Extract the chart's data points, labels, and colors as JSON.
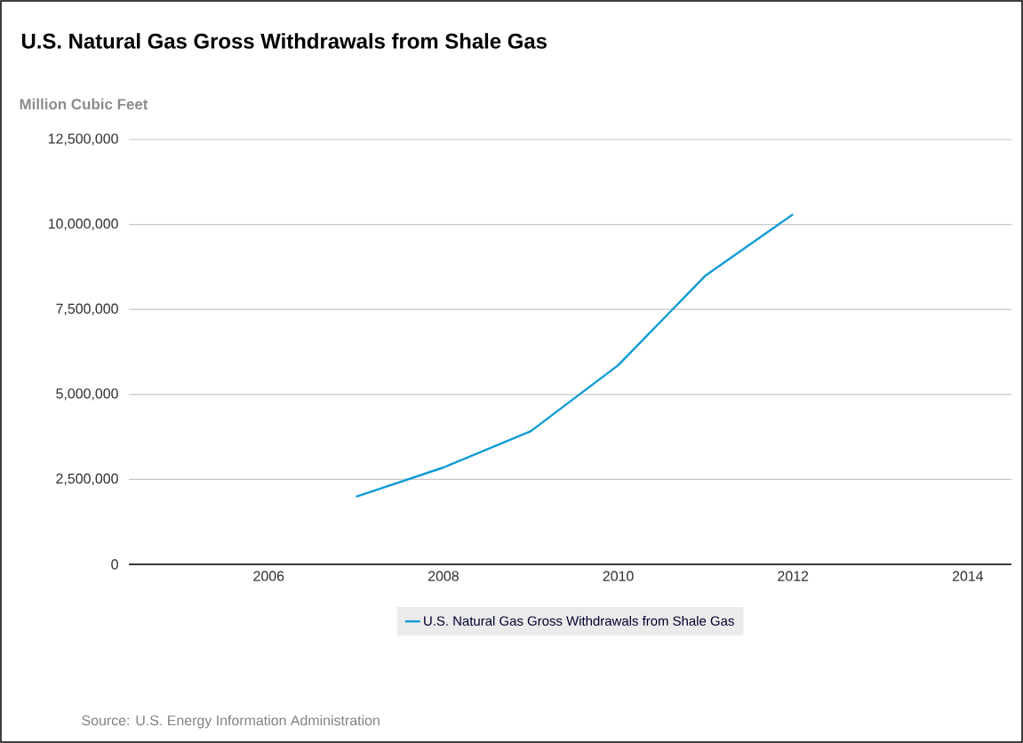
{
  "chart_data": {
    "type": "line",
    "title": "U.S. Natural Gas Gross Withdrawals from Shale Gas",
    "ylabel": "Million Cubic Feet",
    "x": [
      2007,
      2008,
      2009,
      2010,
      2011,
      2012
    ],
    "series": [
      {
        "name": "U.S. Natural Gas Gross Withdrawals from Shale Gas",
        "color": "#0f9bd7",
        "values": [
          1990000,
          2850000,
          3920000,
          5860000,
          8500000,
          10300000
        ]
      }
    ],
    "xlim": [
      2004.4,
      2014.5
    ],
    "ylim": [
      0,
      12500000
    ],
    "xticks": [
      2006,
      2008,
      2010,
      2012,
      2014
    ],
    "yticks": [
      0,
      {
        "value": 2500000,
        "label": "2,500,000"
      },
      {
        "value": 5000000,
        "label": "5,000,000"
      },
      {
        "value": 7500000,
        "label": "7,500,000"
      },
      {
        "value": 10000000,
        "label": "10,000,000"
      },
      {
        "value": 12500000,
        "label": "12,500,000"
      }
    ],
    "grid": "y",
    "legend": "bottom",
    "annotations": [
      "Source: U.S. Energy Information Administration"
    ]
  }
}
